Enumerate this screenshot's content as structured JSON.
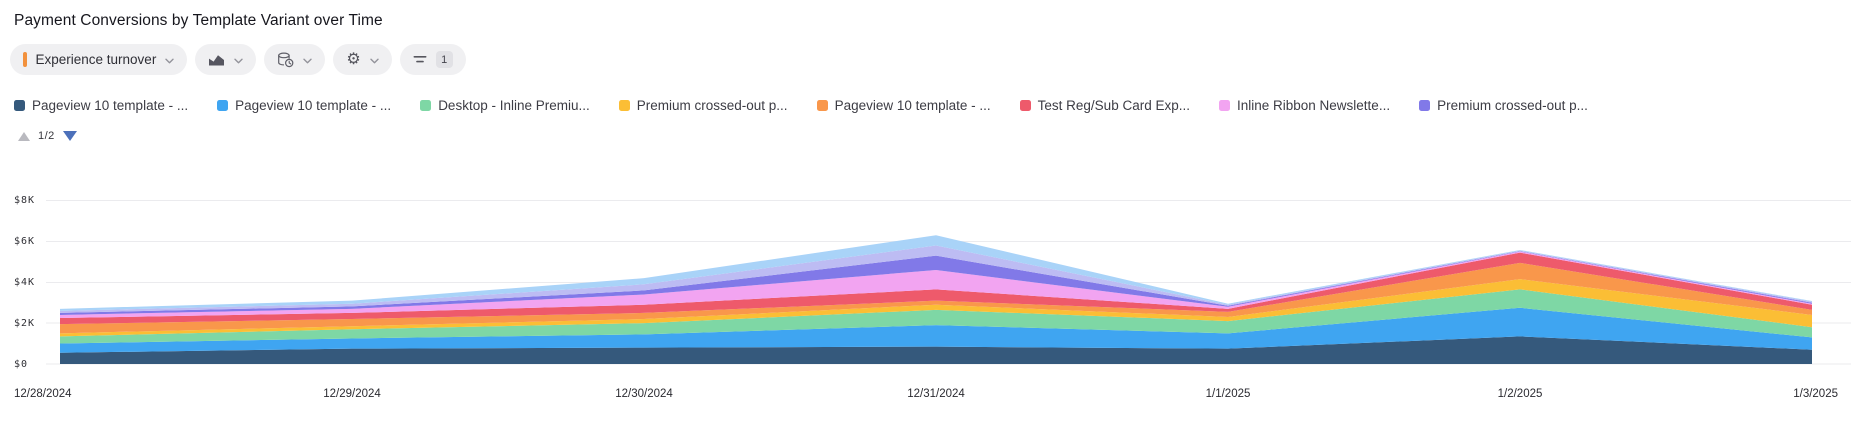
{
  "header": {
    "title": "Payment Conversions by Template Variant over Time"
  },
  "toolbar": {
    "metric_pill": {
      "label": "Experience turnover",
      "accent_color": "#F2913D"
    },
    "filter_pill": {
      "badge_count": "1"
    }
  },
  "legend": {
    "pagination": {
      "page_indicator": "1/2"
    },
    "items": [
      {
        "label": "Pageview 10 template - ...",
        "color": "#35597C"
      },
      {
        "label": "Pageview 10 template - ...",
        "color": "#3FA5F1"
      },
      {
        "label": "Desktop - Inline Premiu...",
        "color": "#7ED7A5"
      },
      {
        "label": "Premium crossed-out p...",
        "color": "#FBBE35"
      },
      {
        "label": "Pageview 10 template - ...",
        "color": "#F9974B"
      },
      {
        "label": "Test Reg/Sub Card Exp...",
        "color": "#EE5A6B"
      },
      {
        "label": "Inline Ribbon Newslette...",
        "color": "#F2A4F1"
      },
      {
        "label": "Premium crossed-out p...",
        "color": "#8179E8"
      }
    ]
  },
  "chart_data": {
    "type": "area",
    "stacked": true,
    "title": "Payment Conversions by Template Variant over Time",
    "xlabel": "",
    "ylabel": "",
    "grid": true,
    "legend_position": "top",
    "ylim": [
      0,
      8000
    ],
    "unit": "$",
    "x": [
      "12/28/2024",
      "12/29/2024",
      "12/30/2024",
      "12/31/2024",
      "1/1/2025",
      "1/2/2025",
      "1/3/2025"
    ],
    "y_ticks": [
      {
        "label": "$8K",
        "value": 8000
      },
      {
        "label": "$6K",
        "value": 6000
      },
      {
        "label": "$4K",
        "value": 4000
      },
      {
        "label": "$2K",
        "value": 2000
      },
      {
        "label": "$0",
        "value": 0
      }
    ],
    "series": [
      {
        "name": "Pageview 10 template - ...",
        "color": "#35597C",
        "visible_in_legend": true,
        "values": [
          550,
          750,
          800,
          850,
          750,
          1350,
          700
        ]
      },
      {
        "name": "Pageview 10 template - ...",
        "color": "#3FA5F1",
        "visible_in_legend": true,
        "values": [
          450,
          500,
          650,
          1050,
          750,
          1400,
          600
        ]
      },
      {
        "name": "Desktop - Inline Premiu...",
        "color": "#7ED7A5",
        "visible_in_legend": true,
        "values": [
          350,
          450,
          550,
          750,
          600,
          900,
          500
        ]
      },
      {
        "name": "Premium crossed-out p...",
        "color": "#FBBE35",
        "visible_in_legend": true,
        "values": [
          150,
          150,
          200,
          250,
          200,
          500,
          600
        ]
      },
      {
        "name": "Pageview 10 template - ...",
        "color": "#F9974B",
        "visible_in_legend": true,
        "values": [
          450,
          350,
          300,
          200,
          250,
          800,
          250
        ]
      },
      {
        "name": "Test Reg/Sub Card Exp...",
        "color": "#EE5A6B",
        "visible_in_legend": true,
        "values": [
          300,
          300,
          400,
          550,
          150,
          500,
          250
        ]
      },
      {
        "name": "Inline Ribbon Newslette...",
        "color": "#F2A4F1",
        "visible_in_legend": true,
        "values": [
          150,
          200,
          500,
          950,
          100,
          50,
          50
        ]
      },
      {
        "name": "Premium crossed-out p...",
        "color": "#8179E8",
        "visible_in_legend": true,
        "values": [
          100,
          120,
          200,
          700,
          50,
          20,
          50
        ]
      },
      {
        "name": "",
        "color": "#BDBCF3",
        "visible_in_legend": false,
        "values": [
          100,
          130,
          300,
          500,
          50,
          30,
          50
        ]
      },
      {
        "name": "",
        "color": "#A9D3F8",
        "visible_in_legend": false,
        "values": [
          100,
          150,
          300,
          500,
          50,
          30,
          30
        ]
      }
    ]
  }
}
